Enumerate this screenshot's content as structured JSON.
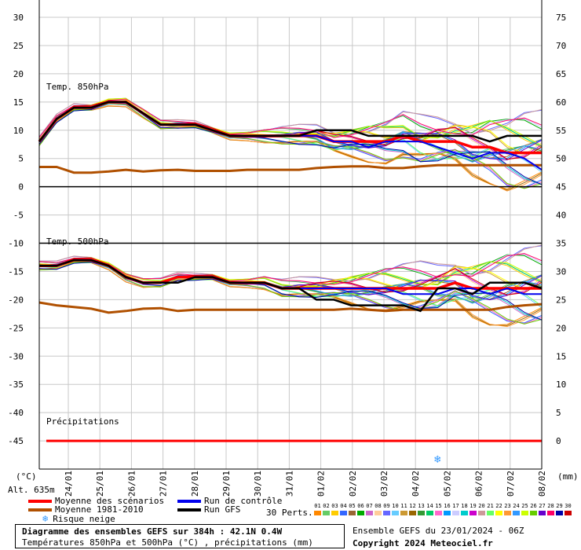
{
  "chart_data": {
    "type": "line",
    "title": "Diagramme des ensembles GEFS sur 384h : 42.1N 0.4W",
    "subtitle": "Températures 850hPa et 500hPa (°C) , précipitations (mm)",
    "left_axis": {
      "unit_label": "(°C)",
      "min": -50,
      "max": 30,
      "ticks": [
        30,
        25,
        20,
        15,
        10,
        5,
        0,
        -5,
        -10,
        -15,
        -20,
        -25,
        -30,
        -35,
        -40,
        -45
      ]
    },
    "right_axis": {
      "unit_label": "(mm)",
      "min": -5,
      "max": 75,
      "ticks": [
        75,
        70,
        65,
        60,
        55,
        50,
        45,
        40,
        35,
        30,
        25,
        20,
        15,
        10,
        5,
        0
      ]
    },
    "altitude_label": "Alt. 635m",
    "x_tick_labels": [
      "24/01",
      "25/01",
      "26/01",
      "27/01",
      "28/01",
      "29/01",
      "30/01",
      "31/01",
      "01/02",
      "02/02",
      "03/02",
      "04/02",
      "05/02",
      "06/02",
      "07/02",
      "08/02"
    ],
    "panel_labels": {
      "t850": "Temp. 850hPa",
      "t500": "Temp. 500hPa",
      "precip": "Précipitations"
    },
    "grid": true,
    "series": [
      {
        "name": "Moyenne des scénarios",
        "color": "#ff0000",
        "panel": "t850",
        "values": [
          8,
          12,
          14,
          14,
          15,
          15,
          13,
          11,
          11,
          11,
          10,
          9,
          9,
          9,
          9,
          9,
          9,
          8,
          8,
          8,
          8,
          9,
          8,
          8,
          8,
          7,
          7,
          6,
          6,
          6
        ]
      },
      {
        "name": "Moyenne 1981-2010",
        "color": "#b05000",
        "panel": "t850",
        "values": [
          3.5,
          3.5,
          2.5,
          2.5,
          2.7,
          3,
          2.7,
          2.9,
          3,
          2.8,
          2.8,
          2.8,
          3,
          3,
          3,
          3,
          3.3,
          3.5,
          3.6,
          3.6,
          3.3,
          3.3,
          3.6,
          3.8,
          3.8,
          3.8,
          3.8,
          3.8,
          3.8,
          3.8
        ]
      },
      {
        "name": "Run de contrôle",
        "color": "#0000ee",
        "panel": "t850",
        "values": [
          8,
          12,
          14,
          14,
          15,
          15,
          13,
          11,
          11,
          11,
          10,
          9,
          9,
          9,
          9,
          9,
          9,
          8,
          8,
          7,
          8,
          8,
          8,
          7,
          6,
          5,
          6,
          6,
          5,
          3
        ]
      },
      {
        "name": "Run GFS",
        "color": "#000000",
        "panel": "t850",
        "values": [
          8,
          12,
          14,
          14,
          15,
          15,
          13,
          11,
          11,
          11,
          10,
          9,
          9,
          9,
          9,
          9,
          10,
          10,
          10,
          9,
          9,
          9,
          9,
          9,
          9,
          9,
          8,
          9,
          9,
          9
        ]
      },
      {
        "name": "Moyenne des scénarios",
        "color": "#ff0000",
        "panel": "t500",
        "values": [
          -14,
          -14,
          -13,
          -13,
          -14,
          -16,
          -17,
          -17,
          -16,
          -16,
          -16,
          -17,
          -17,
          -17,
          -18,
          -18,
          -18,
          -18,
          -18,
          -18,
          -18,
          -18,
          -18,
          -18,
          -17,
          -18,
          -18,
          -18,
          -18,
          -18
        ]
      },
      {
        "name": "Moyenne 1981-2010",
        "color": "#b05000",
        "panel": "t500",
        "values": [
          -20.5,
          -21,
          -21.3,
          -21.6,
          -22.3,
          -22,
          -21.6,
          -21.5,
          -22,
          -21.8,
          -21.8,
          -21.8,
          -21.8,
          -21.8,
          -21.8,
          -21.8,
          -21.8,
          -21.8,
          -21.6,
          -21.8,
          -22,
          -21.8,
          -21.8,
          -21.8,
          -21.8,
          -21.8,
          -21.8,
          -21.3,
          -21,
          -20.8
        ]
      },
      {
        "name": "Run de contrôle",
        "color": "#0000ee",
        "panel": "t500",
        "values": [
          -14,
          -14,
          -13,
          -13,
          -14,
          -16,
          -17,
          -17,
          -17,
          -16,
          -16,
          -17,
          -17,
          -17,
          -18,
          -18,
          -18,
          -18,
          -18,
          -18,
          -18,
          -19,
          -19,
          -19,
          -18,
          -18,
          -19,
          -18,
          -19,
          -19
        ]
      },
      {
        "name": "Run GFS",
        "color": "#000000",
        "panel": "t500",
        "values": [
          -14,
          -14,
          -13,
          -13,
          -14,
          -16,
          -17,
          -17,
          -17,
          -16,
          -16,
          -17,
          -17,
          -17,
          -18,
          -18,
          -20,
          -20,
          -21,
          -21,
          -21,
          -21,
          -22,
          -18,
          -18,
          -19,
          -17,
          -17,
          -17,
          -18
        ]
      }
    ],
    "legend": {
      "items": [
        {
          "label": "Moyenne des scénarios",
          "color": "#ff0000"
        },
        {
          "label": "Run de contrôle",
          "color": "#0000ee"
        },
        {
          "label": "Moyenne 1981-2010",
          "color": "#b05000"
        },
        {
          "label": "Run GFS",
          "color": "#000000"
        }
      ],
      "snow_label": "Risque neige",
      "perturbations_label": "30 Perts.",
      "perturbation_numbers": [
        "01",
        "02",
        "03",
        "04",
        "05",
        "06",
        "07",
        "08",
        "09",
        "10",
        "11",
        "12",
        "13",
        "14",
        "15",
        "16",
        "17",
        "18",
        "19",
        "20",
        "21",
        "22",
        "23",
        "24",
        "25",
        "26",
        "27",
        "28",
        "29",
        "30"
      ],
      "perturbation_colors": [
        "#ff8800",
        "#66cc66",
        "#ffcc00",
        "#3366ff",
        "#996633",
        "#00aa00",
        "#cc66cc",
        "#ffcc99",
        "#6666ff",
        "#66ccff",
        "#cc9933",
        "#996600",
        "#339933",
        "#00cc66",
        "#ff66cc",
        "#0099ff",
        "#ccccff",
        "#00cccc",
        "#cc00cc",
        "#cc9999",
        "#66ff66",
        "#ffff00",
        "#ff9933",
        "#3399ff",
        "#ccff00",
        "#66cc00",
        "#6600cc",
        "#ff0066",
        "#0000aa",
        "#cc0000"
      ]
    },
    "precip_flat_value": 0
  },
  "footer": {
    "title": "Diagramme des ensembles GEFS sur 384h : 42.1N 0.4W",
    "subtitle": "Températures 850hPa et 500hPa (°C) , précipitations (mm)",
    "run_info": "Ensemble GEFS du 23/01/2024 - 06Z",
    "copyright": "Copyright 2024 Meteociel.fr"
  }
}
